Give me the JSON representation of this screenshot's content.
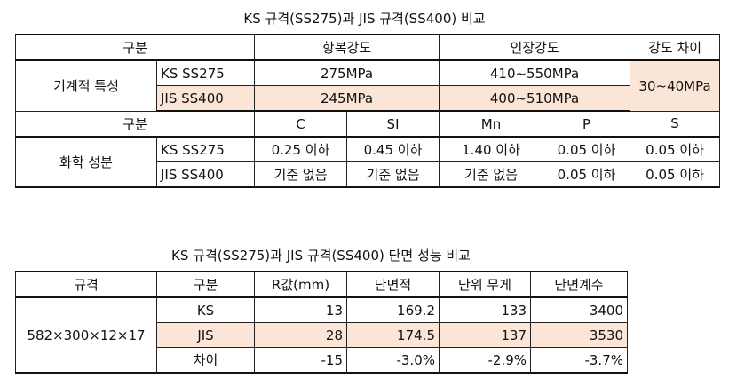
{
  "table1": {
    "title": "KS 규격(SS275)과 JIS 규격(SS400) 비교",
    "header": {
      "col0": "구분",
      "yield": "항복강도",
      "tensile": "인장강도",
      "diff": "강도 차이"
    },
    "mech": {
      "label": "기계적 특성",
      "ks": {
        "name": "KS SS275",
        "yield": "275MPa",
        "tensile": "410~550MPa"
      },
      "jis": {
        "name": "JIS SS400",
        "yield": "245MPa",
        "tensile": "400~510MPa"
      },
      "diff": "30~40MPa"
    },
    "chem_header": {
      "col0": "구분",
      "c": "C",
      "si": "SI",
      "mn": "Mn",
      "p": "P",
      "s": "S"
    },
    "chem": {
      "label": "화학 성분",
      "ks": {
        "name": "KS SS275",
        "c": "0.25 이하",
        "si": "0.45 이하",
        "mn": "1.40 이하",
        "p": "0.05 이하",
        "s": "0.05 이하"
      },
      "jis": {
        "name": "JIS SS400",
        "c": "기준 없음",
        "si": "기준 없음",
        "mn": "기준 없음",
        "p": "0.05 이하",
        "s": "0.05 이하"
      }
    }
  },
  "table2": {
    "title": "KS 규격(SS275)과 JIS 규격(SS400) 단면 성능 비교",
    "header": {
      "spec": "규격",
      "category": "구분",
      "r": "R값(mm)",
      "area": "단면적",
      "weight": "단위 무게",
      "modulus": "단면계수"
    },
    "spec_value": "582×300×12×17",
    "rows": [
      {
        "category": "KS",
        "r": "13",
        "area": "169.2",
        "weight": "133",
        "modulus": "3400"
      },
      {
        "category": "JIS",
        "r": "28",
        "area": "174.5",
        "weight": "137",
        "modulus": "3530"
      },
      {
        "category": "차이",
        "r": "-15",
        "area": "-3.0%",
        "weight": "-2.9%",
        "modulus": "-3.7%"
      }
    ]
  },
  "colors": {
    "highlight": "#fbe5d6",
    "border": "#222222"
  }
}
